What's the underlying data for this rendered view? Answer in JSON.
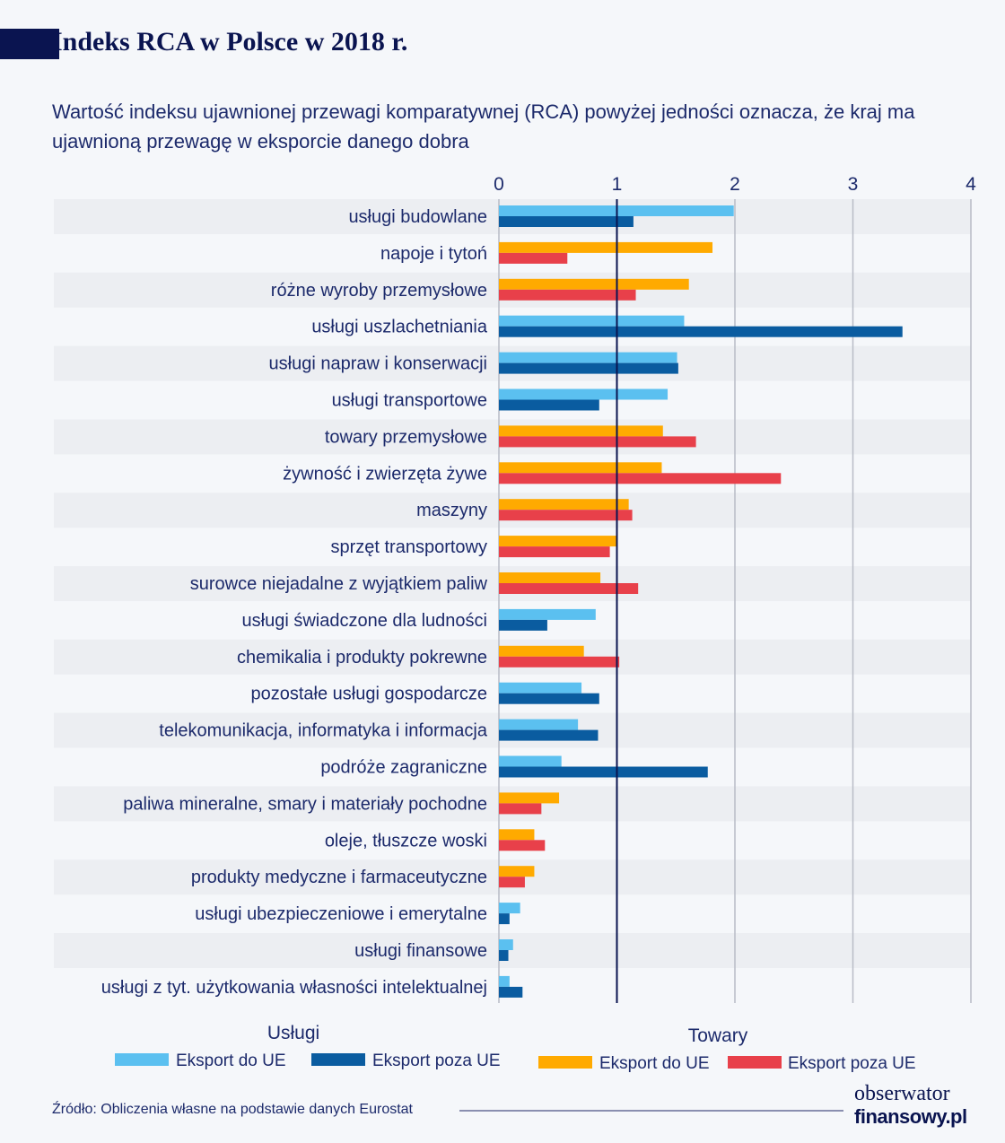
{
  "title": "Indeks RCA w Polsce w 2018 r.",
  "subtitle": "Wartość indeksu ujawnionej przewagi komparatywnej (RCA) powyżej jedności oznacza, że kraj ma ujawnioną przewagę w eksporcie danego dobra",
  "source": "Źródło: Obliczenia własne na podstawie danych Eurostat",
  "logo": {
    "line1": "obserwator",
    "line2": "finansowy.pl"
  },
  "colors": {
    "uslugi_ue": "#5bc0f0",
    "uslugi_poza": "#0a5ca0",
    "towary_ue": "#ffaa00",
    "towary_poza": "#e8404a",
    "reference_line": "#0a1450"
  },
  "chart_data": {
    "type": "bar",
    "orientation": "horizontal",
    "xlim": [
      0,
      4
    ],
    "xticks": [
      "0",
      "1",
      "2",
      "3",
      "4"
    ],
    "reference_line": 1,
    "grid": true,
    "legend": {
      "placement": "bottom",
      "groups": [
        {
          "title": "Usługi",
          "entries": [
            "Eksport do UE",
            "Eksport poza UE"
          ]
        },
        {
          "title": "Towary",
          "entries": [
            "Eksport do UE",
            "Eksport poza UE"
          ]
        }
      ]
    },
    "categories": [
      {
        "label": "usługi budowlane",
        "group": "uslugi",
        "ue": 1.99,
        "poza": 1.14
      },
      {
        "label": "napoje i tytoń",
        "group": "towary",
        "ue": 1.81,
        "poza": 0.58
      },
      {
        "label": "różne wyroby przemysłowe",
        "group": "towary",
        "ue": 1.61,
        "poza": 1.16
      },
      {
        "label": "usługi uszlachetniania",
        "group": "uslugi",
        "ue": 1.57,
        "poza": 3.42
      },
      {
        "label": "usługi napraw i konserwacji",
        "group": "uslugi",
        "ue": 1.51,
        "poza": 1.52
      },
      {
        "label": "usługi transportowe",
        "group": "uslugi",
        "ue": 1.43,
        "poza": 0.85
      },
      {
        "label": "towary przemysłowe",
        "group": "towary",
        "ue": 1.39,
        "poza": 1.67
      },
      {
        "label": "żywność i zwierzęta żywe",
        "group": "towary",
        "ue": 1.38,
        "poza": 2.39
      },
      {
        "label": "maszyny",
        "group": "towary",
        "ue": 1.1,
        "poza": 1.13
      },
      {
        "label": "sprzęt transportowy",
        "group": "towary",
        "ue": 1.0,
        "poza": 0.94
      },
      {
        "label": "surowce niejadalne z wyjątkiem paliw",
        "group": "towary",
        "ue": 0.86,
        "poza": 1.18
      },
      {
        "label": "usługi świadczone dla ludności",
        "group": "uslugi",
        "ue": 0.82,
        "poza": 0.41
      },
      {
        "label": "chemikalia i produkty pokrewne",
        "group": "towary",
        "ue": 0.72,
        "poza": 1.02
      },
      {
        "label": "pozostałe usługi gospodarcze",
        "group": "uslugi",
        "ue": 0.7,
        "poza": 0.85
      },
      {
        "label": "telekomunikacja, informatyka i informacja",
        "group": "uslugi",
        "ue": 0.67,
        "poza": 0.84
      },
      {
        "label": "podróże zagraniczne",
        "group": "uslugi",
        "ue": 0.53,
        "poza": 1.77
      },
      {
        "label": "paliwa mineralne, smary i materiały pochodne",
        "group": "towary",
        "ue": 0.51,
        "poza": 0.36
      },
      {
        "label": "oleje, tłuszcze woski",
        "group": "towary",
        "ue": 0.3,
        "poza": 0.39
      },
      {
        "label": "produkty medyczne i farmaceutyczne",
        "group": "towary",
        "ue": 0.3,
        "poza": 0.22
      },
      {
        "label": "usługi ubezpieczeniowe i emerytalne",
        "group": "uslugi",
        "ue": 0.18,
        "poza": 0.09
      },
      {
        "label": "usługi finansowe",
        "group": "uslugi",
        "ue": 0.12,
        "poza": 0.08
      },
      {
        "label": "usługi z tyt. użytkowania własności intelektualnej",
        "group": "uslugi",
        "ue": 0.09,
        "poza": 0.2
      }
    ]
  }
}
